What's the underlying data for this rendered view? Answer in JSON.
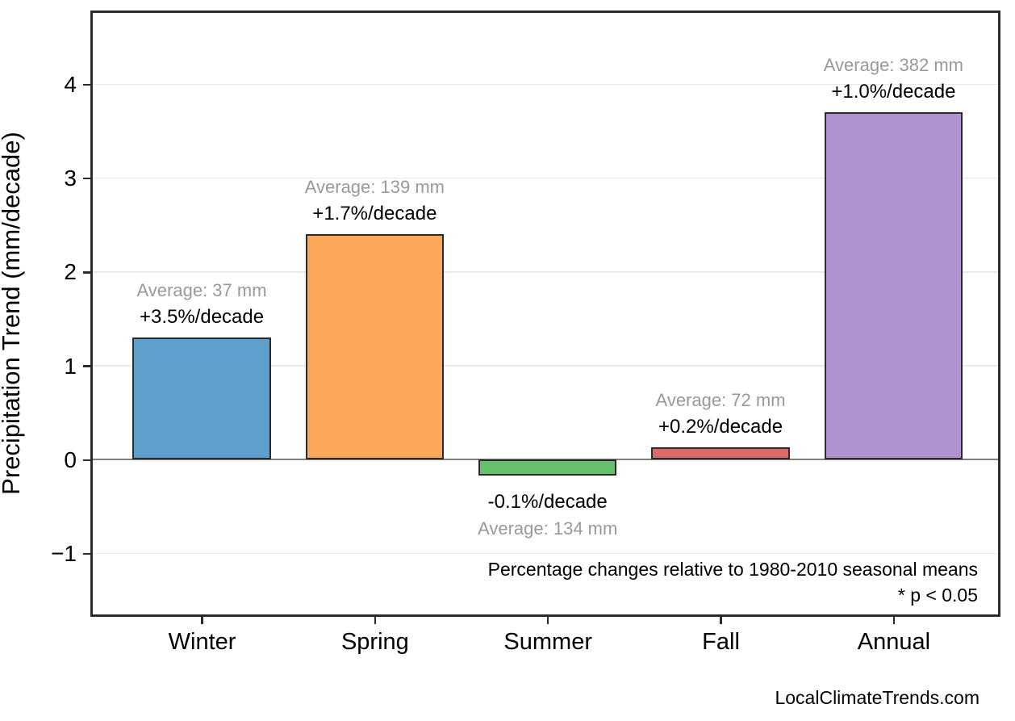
{
  "watermark": "LocalClimateTrends.com",
  "chart_data": {
    "type": "bar",
    "title": "",
    "xlabel": "",
    "ylabel": "Precipitation Trend (mm/decade)",
    "categories": [
      "Winter",
      "Spring",
      "Summer",
      "Fall",
      "Annual"
    ],
    "values": [
      1.3,
      2.4,
      -0.17,
      0.13,
      3.7
    ],
    "bar_colors": [
      "#5E9FCB",
      "#FCA85B",
      "#67BE6B",
      "#DD6A6A",
      "#AE93CF"
    ],
    "annotations": [
      {
        "avg": "Average: 37 mm",
        "pct": "+3.5%/decade",
        "placement": "above"
      },
      {
        "avg": "Average: 139 mm",
        "pct": "+1.7%/decade",
        "placement": "above"
      },
      {
        "avg": "Average: 134 mm",
        "pct": "-0.1%/decade",
        "placement": "below"
      },
      {
        "avg": "Average: 72 mm",
        "pct": "+0.2%/decade",
        "placement": "above"
      },
      {
        "avg": "Average: 382 mm",
        "pct": "+1.0%/decade",
        "placement": "above"
      }
    ],
    "yticks": [
      -1,
      0,
      1,
      2,
      3,
      4
    ],
    "ytick_labels": [
      "−1",
      "0",
      "1",
      "2",
      "3",
      "4"
    ],
    "ylim": [
      -1.64,
      4.76
    ],
    "grid": "horizontal",
    "zero_line": true,
    "legend": "none",
    "notes": [
      "Percentage changes relative to 1980-2010 seasonal means",
      "* p < 0.05"
    ],
    "colors": {
      "avg_text": "#999999",
      "pct_text": "#000000",
      "grid": "#e9e9e9",
      "zero_line": "#808080",
      "spine": "#2b2b2b",
      "tick_text": "#000000"
    }
  }
}
